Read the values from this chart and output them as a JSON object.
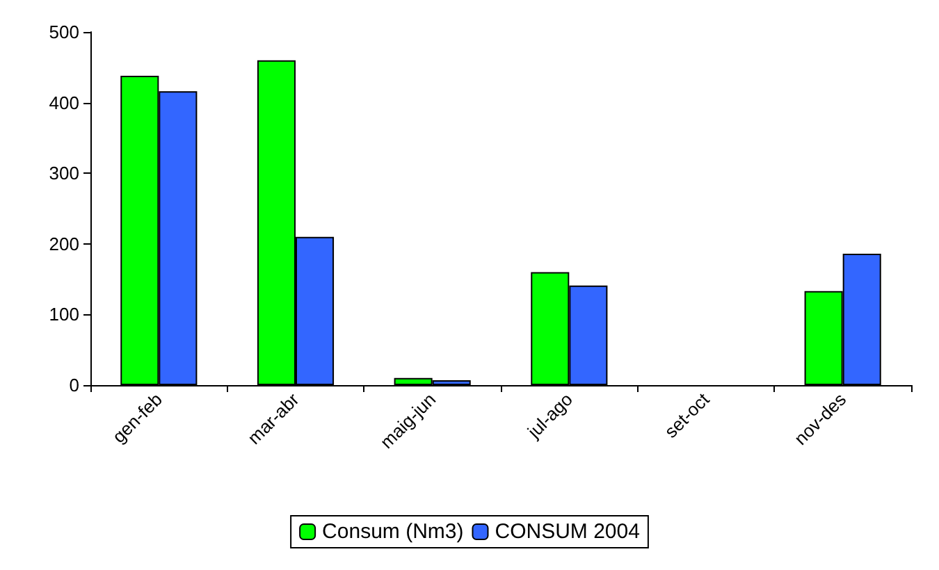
{
  "chart_data": {
    "type": "bar",
    "categories": [
      "gen-feb",
      "mar-abr",
      "maig-jun",
      "jul-ago",
      "set-oct",
      "nov-des"
    ],
    "series": [
      {
        "name": "Consum (Nm3)",
        "color": "#00ff00",
        "values": [
          438,
          460,
          10,
          160,
          null,
          133
        ]
      },
      {
        "name": "CONSUM 2004",
        "color": "#3366ff",
        "values": [
          416,
          210,
          7,
          141,
          null,
          186
        ]
      }
    ],
    "ylim": [
      0,
      500
    ],
    "yticks": [
      0,
      100,
      200,
      300,
      400,
      500
    ],
    "grid": false,
    "legend": "bottom"
  }
}
